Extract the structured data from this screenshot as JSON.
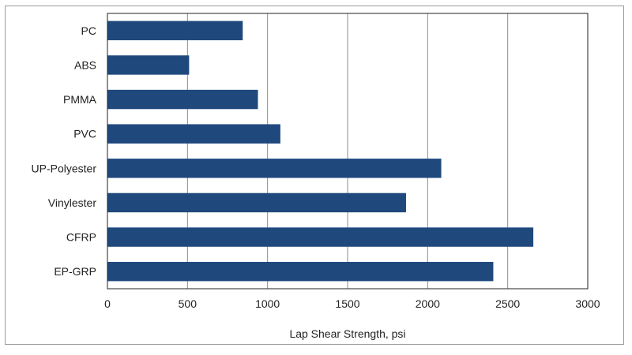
{
  "chart_data": {
    "type": "bar",
    "orientation": "horizontal",
    "categories": [
      "PC",
      "ABS",
      "PMMA",
      "PVC",
      "UP-Polyester",
      "Vinylester",
      "CFRP",
      "EP-GRP"
    ],
    "values": [
      845,
      510,
      940,
      1080,
      2085,
      1865,
      2660,
      2410
    ],
    "xlabel": "Lap Shear Strength, psi",
    "ylabel": "",
    "xlim": [
      0,
      3000
    ],
    "xticks": [
      "0",
      "500",
      "1000",
      "1500",
      "2000",
      "2500",
      "3000"
    ],
    "bar_color": "#1f497d",
    "grid": "vertical",
    "legend": "none"
  }
}
